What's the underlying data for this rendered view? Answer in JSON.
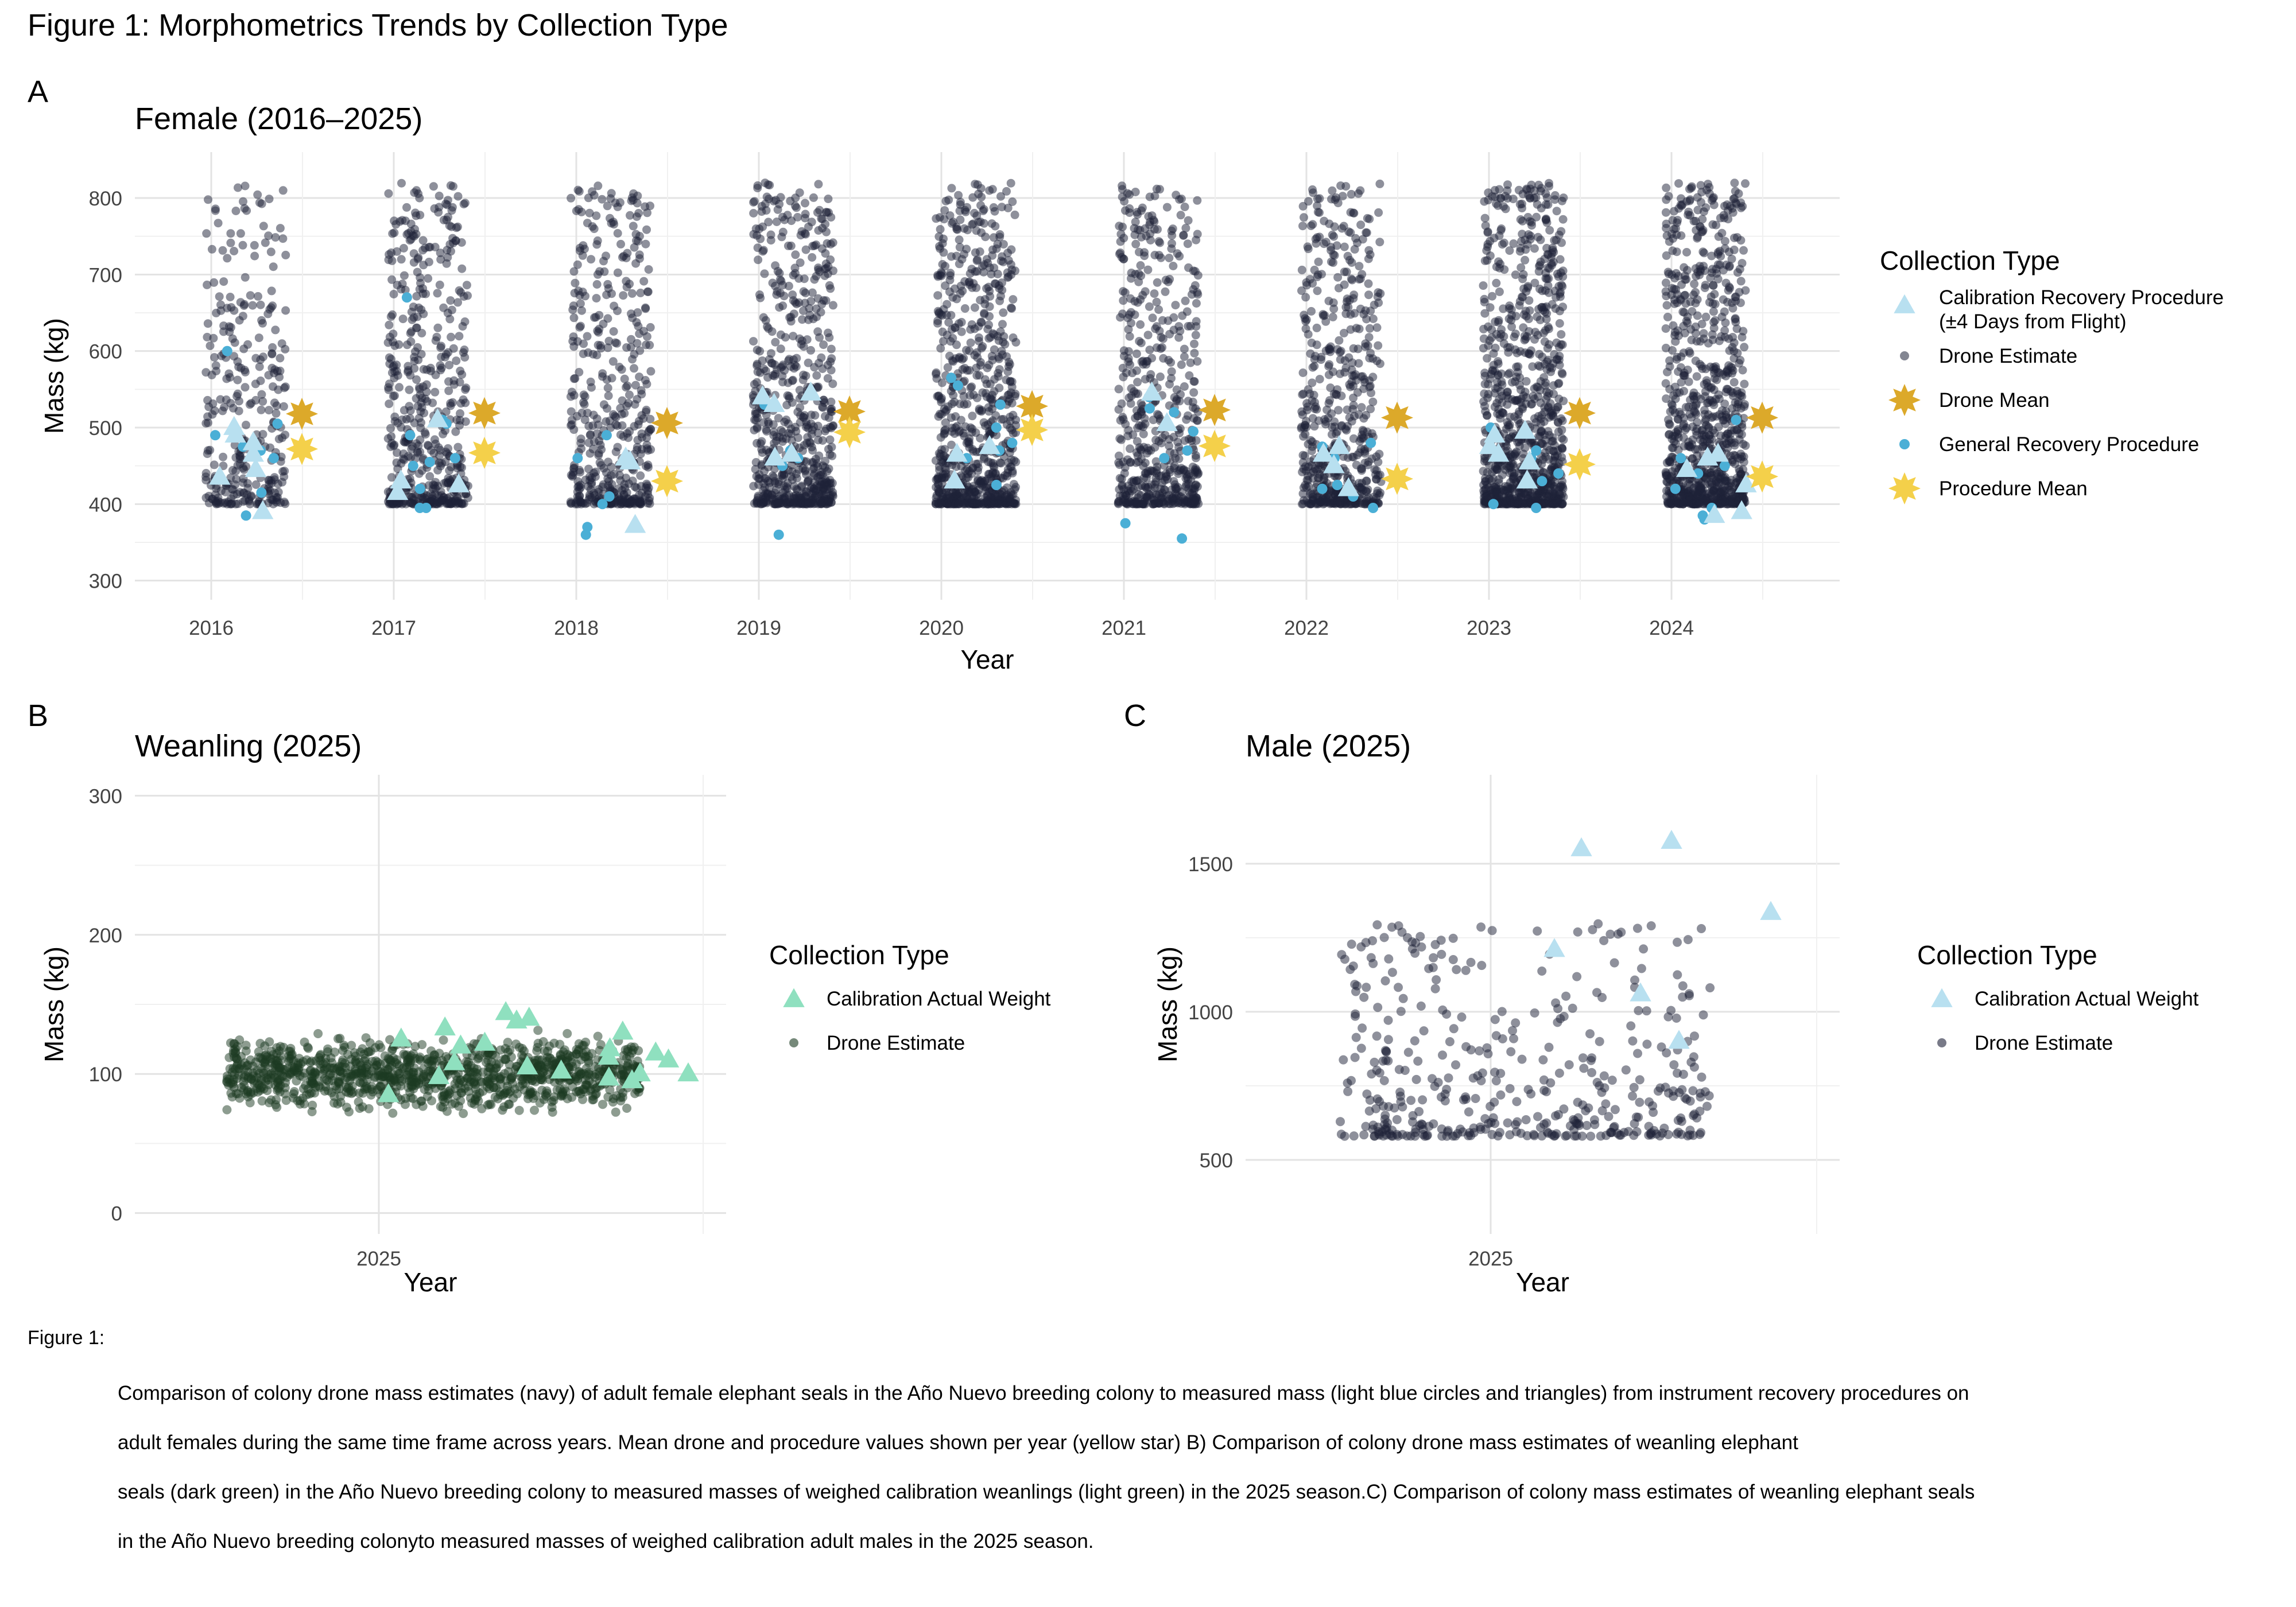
{
  "figure": {
    "title": "Figure 1: Morphometrics Trends by Collection Type",
    "caption_label": "Figure 1:",
    "caption_lines": [
      "Comparison of colony drone mass estimates (navy) of adult female elephant seals in the Año Nuevo breeding colony to measured mass (light blue circles and triangles) from instrument recovery procedures on",
      "adult females during the same time frame across years. Mean drone and procedure values shown per year (yellow star) B) Comparison of colony drone mass estimates of weanling elephant",
      " seals (dark green) in the Año Nuevo breeding colony to measured masses of weighed  calibration weanlings (light green) in the 2025 season.C) Comparison of colony mass estimates of weanling elephant seals",
      "  in the Año Nuevo breeding colonyto measured masses of weighed calibration adult males in the 2025 season."
    ]
  },
  "colors": {
    "drone_navy": "#1e2238",
    "drone_green": "#1b3a22",
    "calibration_light_blue": "#b8e0f0",
    "general_recovery_blue": "#4bafd6",
    "drone_mean_gold": "#dca92a",
    "procedure_mean_yellow": "#f4d04a",
    "calibration_green": "#8fe0bf"
  },
  "chart_data": [
    {
      "panel": "A",
      "type": "scatter",
      "title": "Female (2016–2025)",
      "xlabel": "Year",
      "ylabel": "Mass (kg)",
      "categories": [
        "2016",
        "2017",
        "2018",
        "2019",
        "2020",
        "2021",
        "2022",
        "2023",
        "2024"
      ],
      "yticks": [
        300,
        400,
        500,
        600,
        700,
        800
      ],
      "ylim": [
        275,
        860
      ],
      "grid": true,
      "legend_position": "right",
      "legend_title": "Collection Type",
      "legend": [
        "Calibration Recovery Procedure",
        " (±4 Days from Flight)",
        "Drone Estimate",
        "Drone Mean",
        "General Recovery Procedure",
        "Procedure Mean"
      ],
      "drone_estimate_range": [
        400,
        820
      ],
      "drone_counts": [
        300,
        500,
        450,
        650,
        750,
        550,
        550,
        900,
        900
      ],
      "drone_mean": [
        518,
        519,
        506,
        521,
        528,
        523,
        513,
        519,
        513
      ],
      "procedure_mean": [
        472,
        467,
        430,
        494,
        497,
        476,
        433,
        452,
        436
      ],
      "calibration_recovery": [
        [
          390,
          435,
          445,
          465,
          480,
          490,
          500
        ],
        [
          415,
          425,
          430,
          510
        ],
        [
          372,
          455,
          460
        ],
        [
          460,
          465,
          530,
          540,
          545
        ],
        [
          430,
          475,
          465
        ],
        [
          505,
          545
        ],
        [
          420,
          450,
          465,
          475
        ],
        [
          430,
          455,
          465,
          475,
          490,
          495
        ],
        [
          385,
          390,
          425,
          445,
          460,
          465
        ]
      ],
      "general_recovery": [
        [
          385,
          415,
          460,
          470,
          475,
          490,
          505,
          600
        ],
        [
          395,
          395,
          420,
          450,
          455,
          460,
          490,
          505,
          510,
          670
        ],
        [
          360,
          370,
          400,
          410,
          460,
          490
        ],
        [
          360,
          450,
          460,
          470,
          530
        ],
        [
          425,
          460,
          470,
          480,
          500,
          530,
          555,
          565
        ],
        [
          355,
          375,
          460,
          470,
          495,
          520,
          525,
          540
        ],
        [
          395,
          410,
          420,
          425,
          460,
          475,
          480
        ],
        [
          395,
          400,
          430,
          440,
          460,
          470,
          500
        ],
        [
          380,
          385,
          395,
          420,
          440,
          450,
          460,
          510
        ]
      ]
    },
    {
      "panel": "B",
      "type": "scatter",
      "title": "Weanling (2025)",
      "xlabel": "Year",
      "ylabel": "Mass (kg)",
      "categories": [
        "2025"
      ],
      "yticks": [
        0,
        100,
        200,
        300
      ],
      "ylim": [
        -15,
        315
      ],
      "grid": true,
      "legend_position": "right",
      "legend_title": "Collection Type",
      "legend": [
        "Calibration Actual Weight",
        "Drone Estimate"
      ],
      "drone_estimate_range": [
        65,
        135
      ],
      "calibration_actual_weight": [
        85,
        95,
        97,
        98,
        100,
        100,
        102,
        105,
        108,
        110,
        112,
        115,
        118,
        120,
        122,
        125,
        130,
        133,
        138,
        140,
        144
      ]
    },
    {
      "panel": "C",
      "type": "scatter",
      "title": "Male (2025)",
      "xlabel": "Year",
      "ylabel": "Mass (kg)",
      "categories": [
        "2025"
      ],
      "yticks": [
        500,
        1000,
        1500
      ],
      "ylim": [
        250,
        1800
      ],
      "grid": true,
      "legend_position": "right",
      "legend_title": "Collection Type",
      "legend": [
        "Calibration Actual Weight",
        "Drone Estimate"
      ],
      "drone_estimate_range": [
        580,
        1300
      ],
      "calibration_actual_weight": [
        900,
        1060,
        1210,
        1335,
        1550,
        1575
      ]
    }
  ]
}
